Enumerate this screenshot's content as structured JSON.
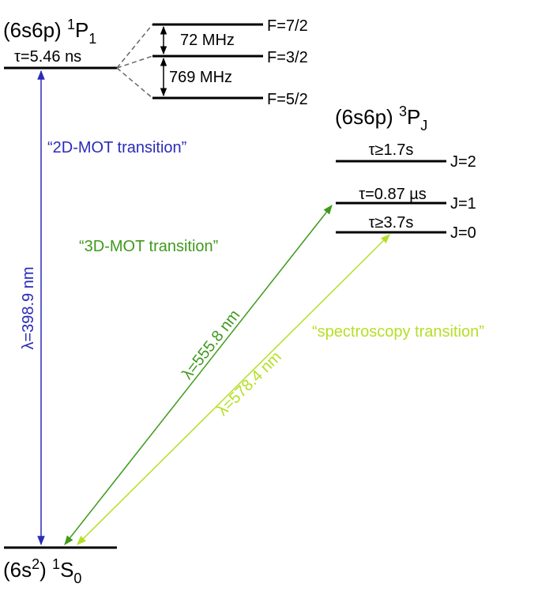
{
  "levels": {
    "singlet": {
      "config": "(6s6p)",
      "multiplicity": "1",
      "term": "P",
      "j": "1",
      "lifetime": "τ=5.46 ns",
      "hyperfine": [
        "F=7/2",
        "F=3/2",
        "F=5/2"
      ],
      "splittings": [
        "72 MHz",
        "769 MHz"
      ]
    },
    "triplet": {
      "config": "(6s6p)",
      "multiplicity": "3",
      "term": "P",
      "j": "J",
      "sublevels": [
        {
          "lifetime": "τ≥1.7s",
          "label": "J=2"
        },
        {
          "lifetime": "τ=0.87 µs",
          "label": "J=1"
        },
        {
          "lifetime": "τ≥3.7s",
          "label": "J=0"
        }
      ]
    },
    "ground": {
      "config_open": "(6s",
      "config_exponent": "2",
      "config_close": ")",
      "multiplicity": "1",
      "term": "S",
      "j": "0"
    }
  },
  "transitions": [
    {
      "wavelength": "λ=398.9 nm",
      "name": "“2D-MOT transition”"
    },
    {
      "wavelength": "λ=555.8 nm",
      "name": "“3D-MOT transition”"
    },
    {
      "wavelength": "λ=578.4 nm",
      "name": "“spectroscopy transition”"
    }
  ]
}
